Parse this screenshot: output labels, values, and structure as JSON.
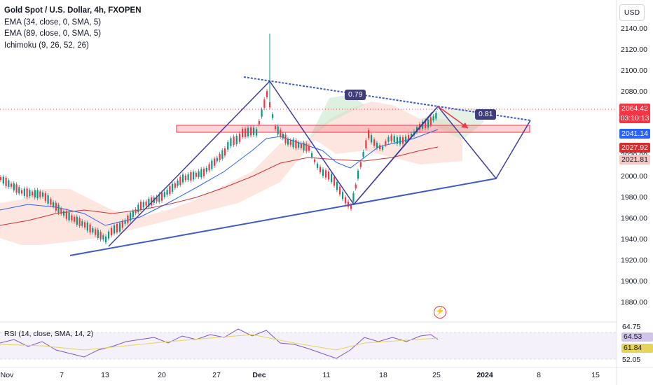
{
  "legend": {
    "title": "Gold Spot / U.S. Dollar, 4h, FXOPEN",
    "indicators": [
      "EMA (34, close, 0, SMA, 5)",
      "EMA (89, close, 0, SMA, 5)",
      "Ichimoku (9, 26, 52, 26)"
    ]
  },
  "currency": "USD",
  "price_axis": [
    "2140.00",
    "2120.00",
    "2100.00",
    "2080.00",
    "2060.00",
    "2040.00",
    "2020.00",
    "2000.00",
    "1980.00",
    "1960.00",
    "1940.00",
    "1920.00",
    "1900.00",
    "1880.00"
  ],
  "price_tags": {
    "current_price": "2064.42",
    "countdown": "03:10:13",
    "ema_fast": "2041.14",
    "ema_slow": "2027.92",
    "ichimoku": "2021.81"
  },
  "ratios": [
    "0.79",
    "0.81"
  ],
  "rsi": {
    "legend": "RSI (14, close, SMA, 14, 2)",
    "axis": [
      "64.75",
      "52.05"
    ],
    "tags": [
      "64.53",
      "61.84"
    ]
  },
  "x_axis": [
    "Nov",
    "7",
    "13",
    "20",
    "27",
    "Dec",
    "11",
    "18",
    "25",
    "2024",
    "8",
    "15"
  ],
  "colors": {
    "up": "#089981",
    "down": "#f23645",
    "ema_fast": "#2962ff",
    "ema_slow": "#d32f2f",
    "pattern": "#3f3d9e",
    "resistance_zone": "#f23645"
  },
  "icons": {
    "alert": "flash-icon"
  }
}
